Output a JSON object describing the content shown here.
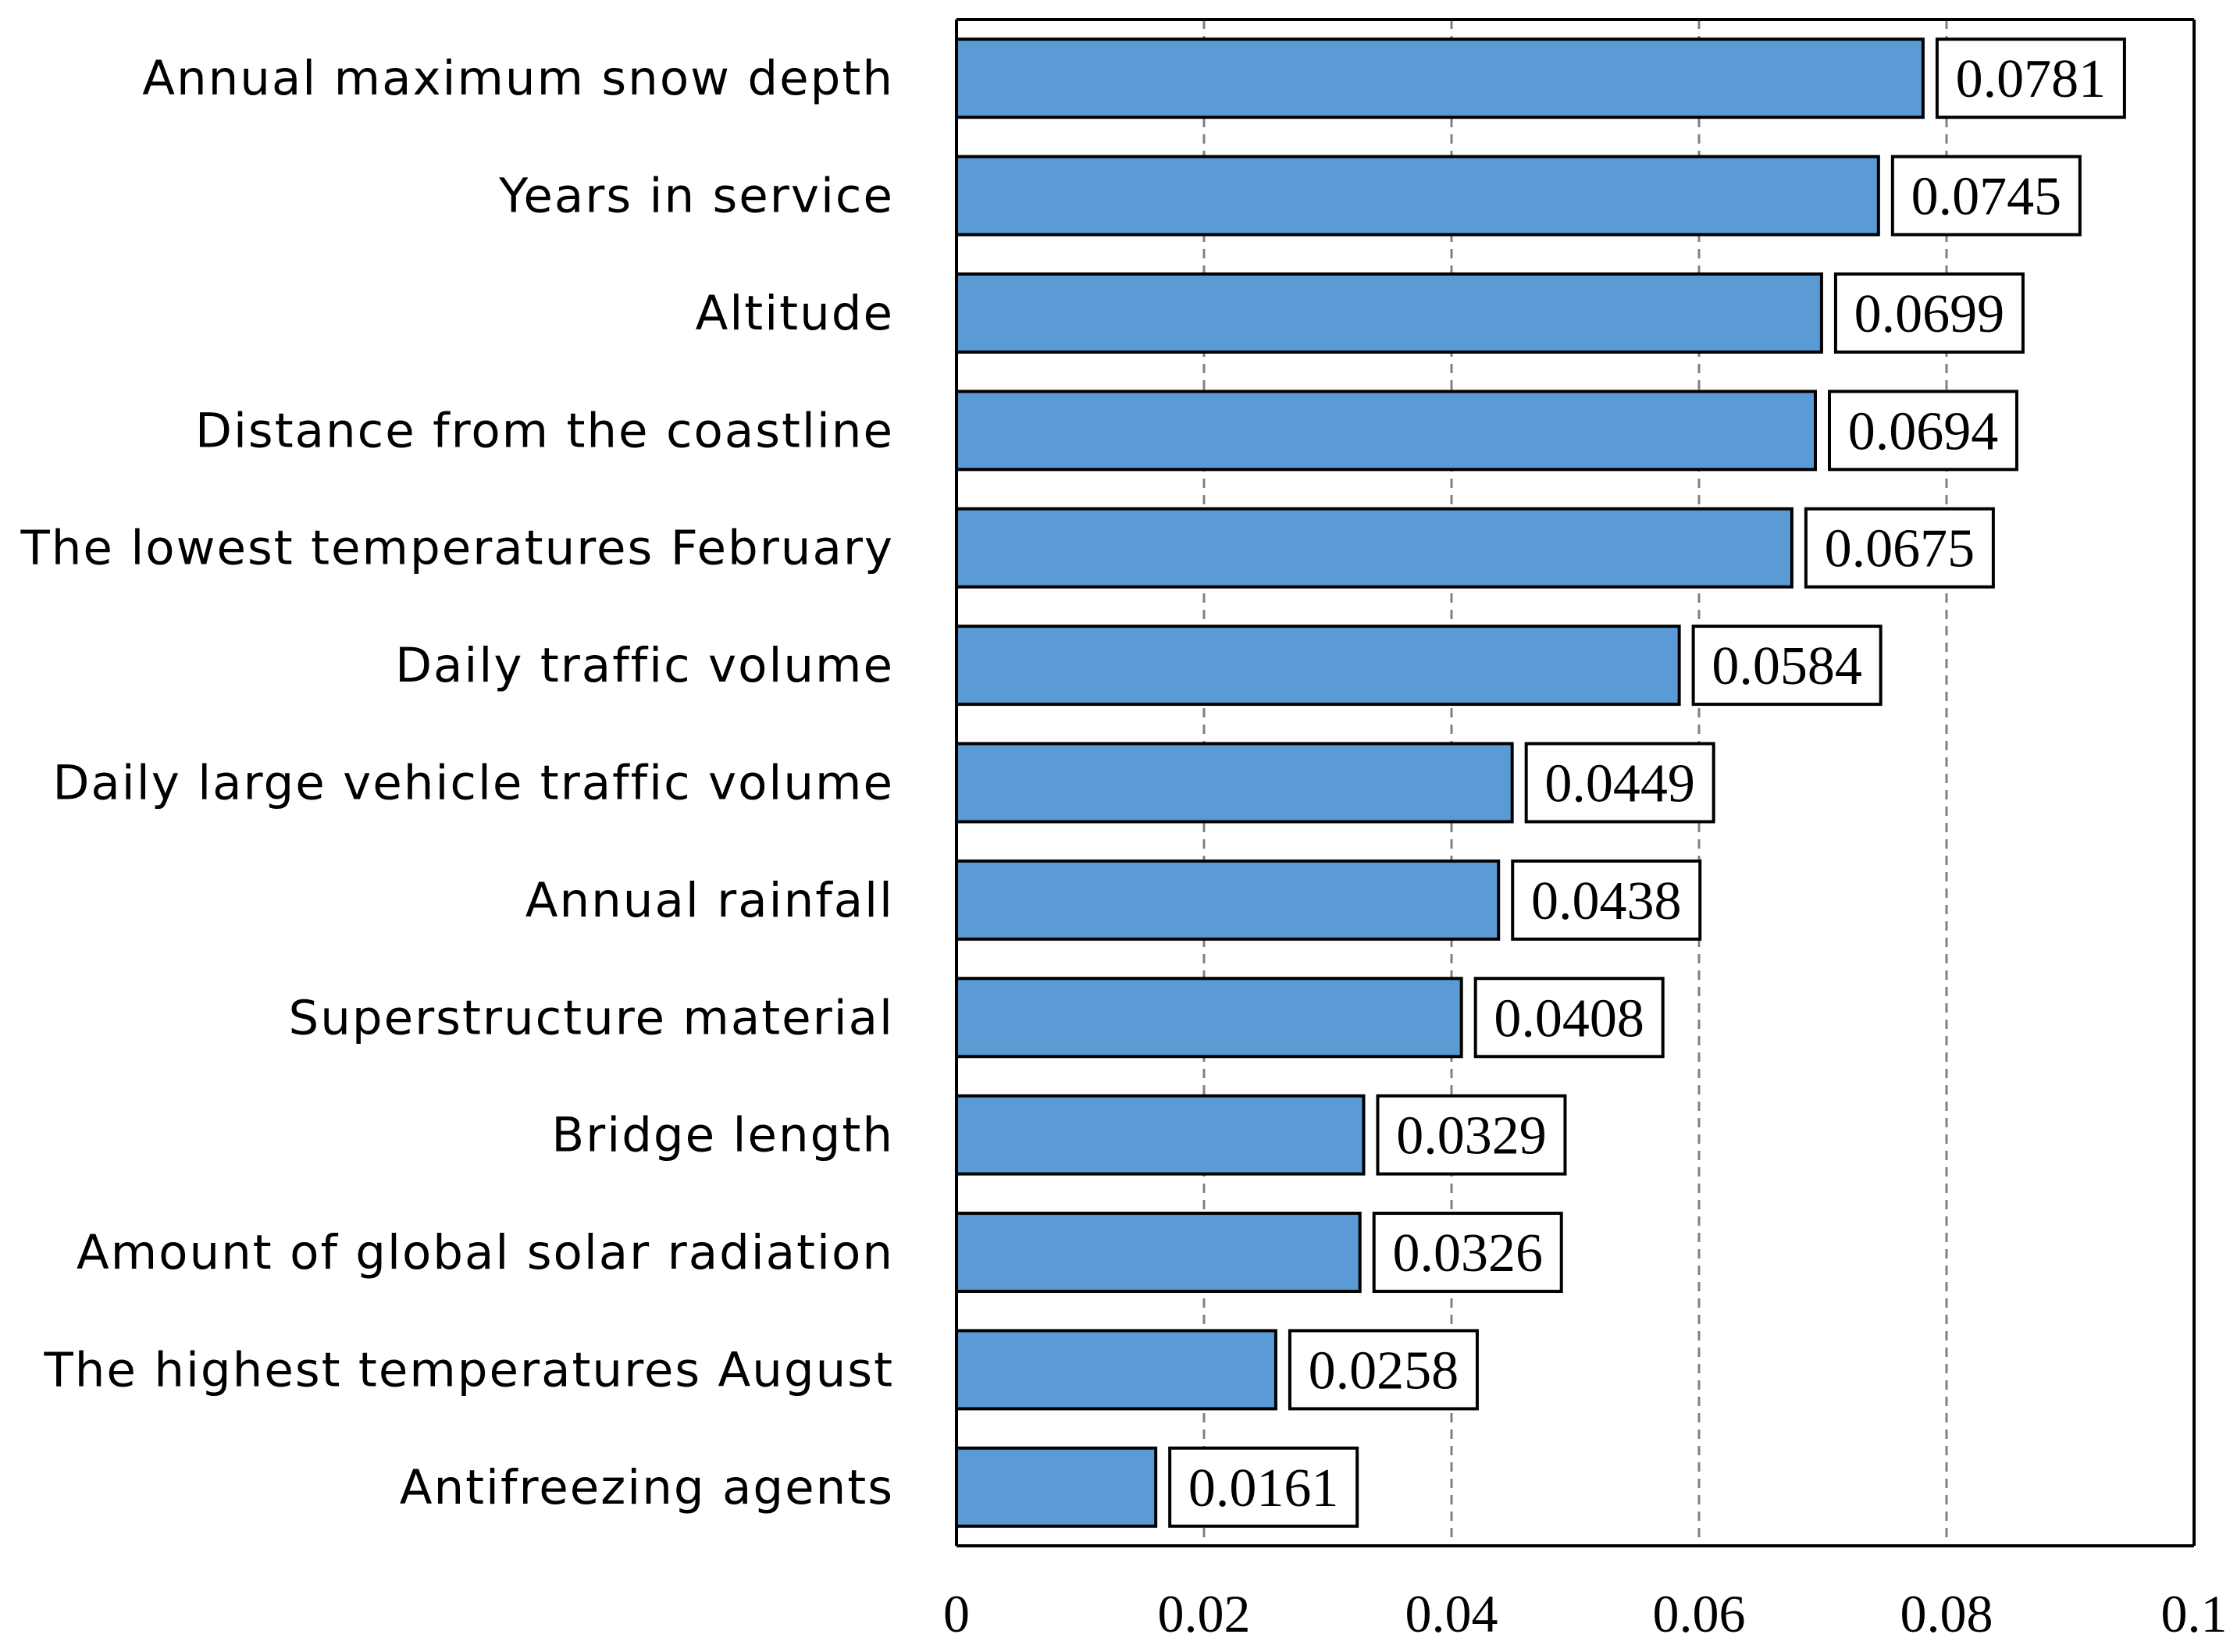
{
  "chart_data": {
    "type": "bar",
    "orientation": "horizontal",
    "categories": [
      "Annual maximum snow depth",
      "Years in service",
      "Altitude",
      "Distance from the coastline",
      "The lowest temperatures February",
      "Daily traffic volume",
      "Daily large vehicle traffic volume",
      "Annual rainfall",
      "Superstructure material",
      "Bridge length",
      "Amount of global solar radiation",
      "The highest temperatures August",
      "Antifreezing agents"
    ],
    "values": [
      0.0781,
      0.0745,
      0.0699,
      0.0694,
      0.0675,
      0.0584,
      0.0449,
      0.0438,
      0.0408,
      0.0329,
      0.0326,
      0.0258,
      0.0161
    ],
    "value_labels": [
      "0.0781",
      "0.0745",
      "0.0699",
      "0.0694",
      "0.0675",
      "0.0584",
      "0.0449",
      "0.0438",
      "0.0408",
      "0.0329",
      "0.0326",
      "0.0258",
      "0.0161"
    ],
    "x_ticks": [
      0,
      0.02,
      0.04,
      0.06,
      0.08,
      0.1
    ],
    "x_tick_labels": [
      "0",
      "0.02",
      "0.04",
      "0.06",
      "0.08",
      "0.1"
    ],
    "xlim": [
      0,
      0.1
    ],
    "title": "",
    "xlabel": "",
    "ylabel": "",
    "grid": "vertical dashed",
    "legend": "none",
    "colors": {
      "bar": "#5b9bd5",
      "grid": "#808080",
      "axis": "#000000"
    }
  }
}
